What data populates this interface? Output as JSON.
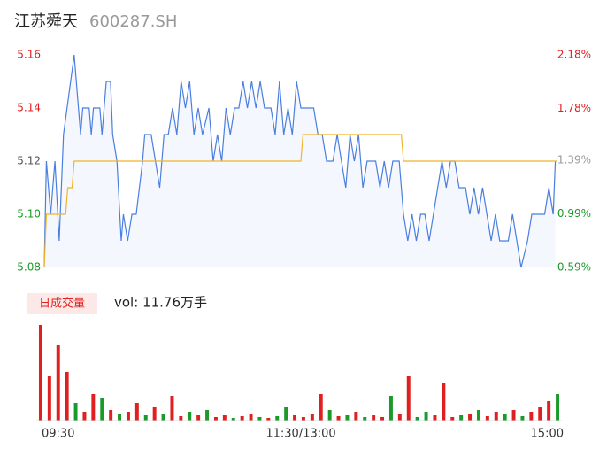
{
  "chart_data": [
    {
      "type": "line",
      "title": "江苏舜天",
      "subtitle": "600287.SH",
      "xlim": [
        0,
        240
      ],
      "xticks": [
        {
          "value": 0,
          "label": "09:30"
        },
        {
          "value": 120,
          "label": "11:30/13:00"
        },
        {
          "value": 240,
          "label": "15:00"
        }
      ],
      "ylim": [
        5.08,
        5.16
      ],
      "yticks": [
        5.08,
        {
          "value": 5.1,
          "label": "5.10"
        },
        5.12,
        5.14,
        5.16
      ],
      "ytick_colors": [
        "#1a9a2a",
        "#1a9a2a",
        "#555555",
        "#e02020",
        "#e02020"
      ],
      "y2lim": [
        0.59,
        2.18
      ],
      "y2ticks": [
        {
          "value": 0.59,
          "label": "0.59%"
        },
        {
          "value": 0.99,
          "label": "0.99%"
        },
        {
          "value": 1.39,
          "label": "1.39%"
        },
        {
          "value": 1.78,
          "label": "1.78%"
        },
        {
          "value": 2.18,
          "label": "2.18%"
        }
      ],
      "y2tick_colors": [
        "#1a9a2a",
        "#1a9a2a",
        "#999999",
        "#e02020",
        "#e02020"
      ],
      "series": [
        {
          "color": "#4a7fe0",
          "x": [
            0,
            1,
            3,
            5,
            7,
            9,
            14,
            17,
            18,
            21,
            22,
            23,
            26,
            27,
            29,
            31,
            32,
            34,
            36,
            37,
            39,
            41,
            43,
            46,
            47,
            50,
            52,
            54,
            56,
            58,
            60,
            62,
            64,
            66,
            68,
            70,
            72,
            74,
            77,
            79,
            81,
            83,
            85,
            87,
            89,
            91,
            93,
            95,
            97,
            99,
            101,
            103,
            106,
            108,
            110,
            112,
            114,
            116,
            118,
            120,
            122,
            124,
            126,
            128,
            130,
            132,
            135,
            137,
            139,
            141,
            143,
            145,
            147,
            149,
            151,
            153,
            155,
            157,
            159,
            161,
            163,
            166,
            168,
            170,
            172,
            174,
            176,
            178,
            180,
            182,
            184,
            186,
            188,
            190,
            192,
            194,
            197,
            199,
            201,
            203,
            205,
            207,
            209,
            211,
            213,
            215,
            217,
            219,
            221,
            223,
            226,
            228,
            230,
            232,
            234,
            236,
            238,
            239
          ],
          "values": [
            5.08,
            5.12,
            5.1,
            5.12,
            5.09,
            5.13,
            5.16,
            5.13,
            5.14,
            5.14,
            5.13,
            5.14,
            5.14,
            5.13,
            5.15,
            5.15,
            5.13,
            5.12,
            5.09,
            5.1,
            5.09,
            5.1,
            5.1,
            5.12,
            5.13,
            5.13,
            5.12,
            5.11,
            5.13,
            5.13,
            5.14,
            5.13,
            5.15,
            5.14,
            5.15,
            5.13,
            5.14,
            5.13,
            5.14,
            5.12,
            5.13,
            5.12,
            5.14,
            5.13,
            5.14,
            5.14,
            5.15,
            5.14,
            5.15,
            5.14,
            5.15,
            5.14,
            5.14,
            5.13,
            5.15,
            5.13,
            5.14,
            5.13,
            5.15,
            5.14,
            5.14,
            5.14,
            5.14,
            5.13,
            5.13,
            5.12,
            5.12,
            5.13,
            5.12,
            5.11,
            5.13,
            5.12,
            5.13,
            5.11,
            5.12,
            5.12,
            5.12,
            5.11,
            5.12,
            5.11,
            5.12,
            5.12,
            5.1,
            5.09,
            5.1,
            5.09,
            5.1,
            5.1,
            5.09,
            5.1,
            5.11,
            5.12,
            5.11,
            5.12,
            5.12,
            5.11,
            5.11,
            5.1,
            5.11,
            5.1,
            5.11,
            5.1,
            5.09,
            5.1,
            5.09,
            5.09,
            5.09,
            5.1,
            5.09,
            5.08,
            5.09,
            5.1,
            5.1,
            5.1,
            5.1,
            5.11,
            5.1,
            5.12
          ]
        },
        {
          "color": "#f0b429",
          "x": [
            0,
            1,
            10,
            11,
            13,
            14,
            120,
            121,
            167,
            168,
            240
          ],
          "values": [
            5.08,
            5.1,
            5.1,
            5.11,
            5.11,
            5.12,
            5.12,
            5.13,
            5.13,
            5.12,
            5.12
          ]
        }
      ]
    },
    {
      "type": "bar",
      "title": "日成交量",
      "annotation": "vol: 11.76万手",
      "ylim": [
        0,
        110
      ],
      "values": [
        108,
        50,
        85,
        55,
        20,
        10,
        30,
        25,
        12,
        8,
        10,
        20,
        6,
        15,
        8,
        28,
        5,
        10,
        6,
        12,
        4,
        6,
        3,
        5,
        8,
        4,
        3,
        5,
        15,
        6,
        4,
        8,
        30,
        12,
        5,
        6,
        10,
        4,
        6,
        4,
        28,
        8,
        50,
        4,
        10,
        6,
        42,
        4,
        6,
        8,
        12,
        5,
        10,
        8,
        12,
        5,
        10,
        15,
        22,
        30
      ],
      "colors": [
        "#e02020",
        "#e02020",
        "#e02020",
        "#e02020",
        "#1a9a2a",
        "#e02020",
        "#e02020",
        "#1a9a2a",
        "#e02020",
        "#1a9a2a",
        "#e02020",
        "#e02020",
        "#1a9a2a",
        "#e02020",
        "#1a9a2a",
        "#e02020",
        "#e02020",
        "#1a9a2a",
        "#e02020",
        "#1a9a2a",
        "#e02020",
        "#e02020",
        "#1a9a2a",
        "#e02020",
        "#e02020",
        "#1a9a2a",
        "#e02020",
        "#1a9a2a",
        "#1a9a2a",
        "#e02020",
        "#e02020",
        "#e02020",
        "#e02020",
        "#1a9a2a",
        "#e02020",
        "#1a9a2a",
        "#e02020",
        "#1a9a2a",
        "#e02020",
        "#e02020",
        "#1a9a2a",
        "#e02020",
        "#e02020",
        "#1a9a2a",
        "#1a9a2a",
        "#e02020",
        "#e02020",
        "#e02020",
        "#1a9a2a",
        "#e02020",
        "#1a9a2a",
        "#e02020",
        "#e02020",
        "#1a9a2a",
        "#e02020",
        "#1a9a2a",
        "#e02020",
        "#e02020",
        "#e02020",
        "#1a9a2a"
      ]
    }
  ]
}
